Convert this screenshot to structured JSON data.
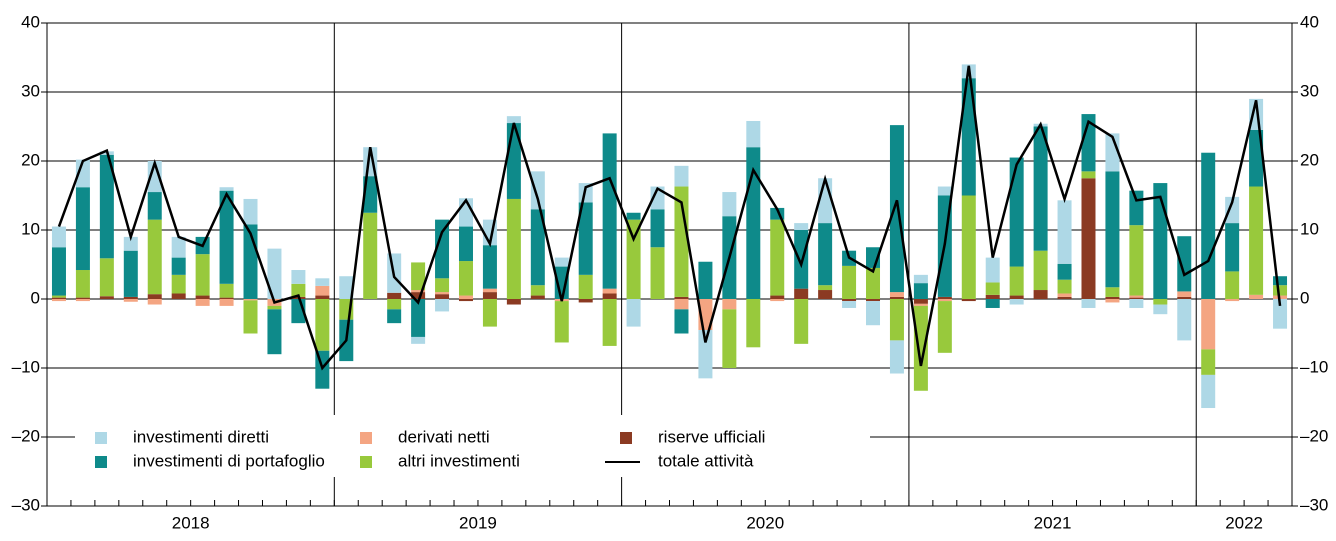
{
  "chart_data": {
    "type": "bar",
    "years": [
      "2018",
      "2019",
      "2020",
      "2021",
      "2022"
    ],
    "months_per_year": [
      12,
      12,
      12,
      12,
      4
    ],
    "ylim": [
      -30,
      40
    ],
    "yticks": [
      {
        "value": -30,
        "label": "–30"
      },
      {
        "value": -20,
        "label": "–20"
      },
      {
        "value": -10,
        "label": "–10"
      },
      0,
      10,
      20,
      30,
      40
    ],
    "y2lim": [
      -30,
      40
    ],
    "y2ticks": [
      {
        "value": -30,
        "label": "–30"
      },
      {
        "value": -20,
        "label": "–20"
      },
      {
        "value": -10,
        "label": "–10"
      },
      0,
      10,
      20,
      30,
      40
    ],
    "grid": true,
    "series": [
      {
        "name": "investimenti diretti",
        "color": "#aed8e6",
        "values": [
          3,
          4,
          0.5,
          2,
          4.5,
          3,
          0,
          0.5,
          3.7,
          7.3,
          2,
          1.1,
          3.3,
          4.2,
          5.7,
          -1,
          -1.8,
          4.1,
          3.7,
          1,
          5.5,
          1.3,
          2.8,
          0,
          -4,
          3.3,
          3,
          -7,
          3.5,
          3.8,
          0,
          1,
          6.5,
          -1,
          -3.5,
          -4.8,
          1.2,
          1.3,
          2,
          3.6,
          -0.8,
          0.4,
          9.2,
          -1.3,
          5.5,
          -1.3,
          -1.4,
          -6,
          -4.8,
          3.8,
          4.5,
          -4.3
        ]
      },
      {
        "name": "investimenti di portafoglio",
        "color": "#0e8a8a",
        "values": [
          7,
          12,
          15,
          6.7,
          4,
          2.5,
          2.5,
          13.5,
          10.8,
          -6.5,
          -3.5,
          -5.5,
          -6,
          5.3,
          -2,
          -5.5,
          8.5,
          5,
          6.3,
          11,
          11,
          4.7,
          10.5,
          22.5,
          1,
          5.5,
          -3.5,
          5.4,
          12,
          22,
          1.7,
          8.5,
          9,
          2.2,
          3,
          24.2,
          2.3,
          14.7,
          17,
          -1.3,
          15.8,
          18,
          2.3,
          8.3,
          16.8,
          5,
          16.8,
          8,
          21.2,
          7,
          8.2,
          1.3
        ]
      },
      {
        "name": "derivati netti",
        "color": "#f4a582",
        "values": [
          -0.3,
          -0.3,
          0,
          -0.4,
          -0.8,
          0,
          -1,
          -1,
          -0.2,
          -1,
          0,
          1.4,
          0,
          0,
          0,
          0.3,
          0.3,
          0.5,
          0.5,
          0,
          0,
          -0.3,
          0,
          0.7,
          0,
          0,
          -1.5,
          -4.5,
          -1.5,
          0,
          -0.3,
          0,
          0,
          0,
          0,
          0.7,
          -0.3,
          -0.3,
          0,
          0,
          0,
          0,
          0.5,
          0,
          -0.5,
          0.3,
          0,
          0.8,
          -7.3,
          -0.3,
          0.6,
          0.5
        ]
      },
      {
        "name": "altri investimenti",
        "color": "#98c93c",
        "values": [
          0.3,
          4,
          5.5,
          0,
          10.8,
          2.7,
          6,
          2,
          -4.8,
          -0.5,
          1.9,
          -7.5,
          -3,
          12.5,
          -1.5,
          4,
          2,
          5,
          -4,
          14.5,
          1.5,
          -6,
          3.5,
          -6.8,
          11.5,
          7.5,
          16,
          0,
          -8.5,
          -7,
          11,
          -6.5,
          0.7,
          4.8,
          4.5,
          -6,
          -12.3,
          -7.5,
          15,
          1.8,
          4.2,
          5.7,
          2,
          1,
          1.4,
          10.2,
          -0.8,
          0,
          -3.7,
          4,
          15.7,
          1.5
        ]
      },
      {
        "name": "riserve ufficiali",
        "color": "#8b3a22",
        "values": [
          0.2,
          0.2,
          0.4,
          0.3,
          0.7,
          0.8,
          0.5,
          0.2,
          0,
          0,
          0.3,
          0.5,
          0,
          0,
          0.9,
          1,
          0.7,
          -0.3,
          1,
          -0.8,
          0.5,
          0,
          -0.5,
          0.8,
          0,
          0,
          0.3,
          0,
          0,
          0,
          0.5,
          1.5,
          1.3,
          -0.3,
          -0.3,
          0.3,
          -0.7,
          0.3,
          -0.3,
          0.6,
          0.5,
          1.3,
          0.3,
          17.5,
          0.3,
          0.2,
          0,
          0.3,
          0,
          0,
          0,
          0
        ]
      },
      {
        "name": "totale attività",
        "color": "#000000",
        "type": "line",
        "values": [
          10.5,
          20,
          21.5,
          9,
          19.7,
          9,
          7.7,
          15.2,
          9.5,
          -0.5,
          0.5,
          -10,
          -6,
          22,
          3.2,
          -0.5,
          9.7,
          14.3,
          8,
          25.5,
          14.5,
          -0.3,
          16.2,
          17.5,
          8.7,
          16,
          14,
          -6.3,
          6,
          18.7,
          13,
          5,
          17.4,
          6,
          4,
          14.3,
          -9.7,
          8,
          33.8,
          6,
          19.5,
          25.3,
          14.5,
          25.7,
          23.5,
          14.3,
          14.8,
          3.5,
          5.5,
          14,
          28.8,
          -1
        ]
      }
    ]
  }
}
